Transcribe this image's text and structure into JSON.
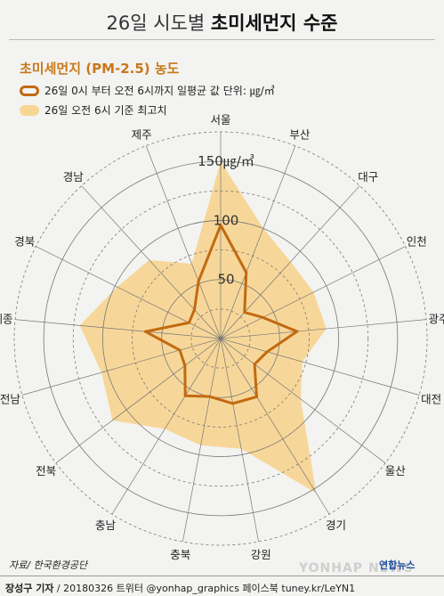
{
  "header": {
    "title_light": "26일 시도별",
    "title_bold": "초미세먼지 수준"
  },
  "legend": {
    "subtitle": "초미세먼지 (PM-2.5) 농도",
    "avg_label": "26일 0시 부터 오전 6시까지 일평균 값 단위: ㎍/㎥",
    "max_label": "26일 오전 6시 기준 최고치"
  },
  "colors": {
    "avg_line": "#c26a10",
    "max_fill": "#f7d593",
    "grid": "#777777"
  },
  "chart_data": {
    "type": "radar",
    "categories": [
      "서울",
      "부산",
      "대구",
      "인천",
      "광주",
      "대전",
      "울산",
      "경기",
      "강원",
      "충북",
      "충남",
      "전북",
      "전남",
      "세종",
      "경북",
      "경남",
      "제주"
    ],
    "series": [
      {
        "name": "26일 0시 부터 오전 6시까지 일평균 값",
        "values": [
          96,
          60,
          30,
          40,
          65,
          41,
          36,
          58,
          56,
          50,
          57,
          38,
          36,
          64,
          30,
          33,
          52
        ]
      },
      {
        "name": "26일 오전 6시 기준 최고치",
        "values": [
          150,
          100,
          88,
          88,
          90,
          72,
          85,
          154,
          95,
          92,
          90,
          115,
          105,
          120,
          98,
          90,
          68
        ]
      }
    ],
    "r_ticks": [
      {
        "value": 50,
        "label": "50"
      },
      {
        "value": 100,
        "label": "100"
      },
      {
        "value": 150,
        "label": "150㎍/㎥"
      }
    ],
    "rlim": [
      0,
      175
    ],
    "grid": true
  },
  "footer": {
    "source": "자료/ 한국환경공단",
    "credit_name": "장성구 기자",
    "credit_rest": " / 20180326 트위터 @yonhap_graphics 페이스북 tuney.kr/LeYN1",
    "watermark": "YONHAP NEWS",
    "brand": "연합뉴스"
  }
}
